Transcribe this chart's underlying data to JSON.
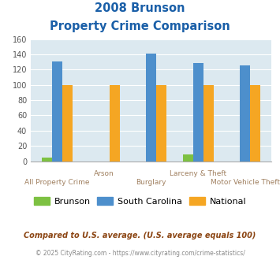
{
  "title_line1": "2008 Brunson",
  "title_line2": "Property Crime Comparison",
  "categories": [
    "All Property Crime",
    "Arson",
    "Burglary",
    "Larceny & Theft",
    "Motor Vehicle Theft"
  ],
  "brunson": [
    5,
    0,
    0,
    9,
    0
  ],
  "south_carolina": [
    131,
    0,
    141,
    129,
    125
  ],
  "national": [
    100,
    100,
    100,
    100,
    100
  ],
  "brunson_color": "#7dc142",
  "sc_color": "#4d8fcc",
  "national_color": "#f5a623",
  "bg_color": "#dce9f0",
  "ylim": [
    0,
    160
  ],
  "yticks": [
    0,
    20,
    40,
    60,
    80,
    100,
    120,
    140,
    160
  ],
  "title_color": "#1a5fa8",
  "label_row1": [
    "",
    "Arson",
    "",
    "Larceny & Theft",
    ""
  ],
  "label_row2": [
    "All Property Crime",
    "",
    "Burglary",
    "",
    "Motor Vehicle Theft"
  ],
  "label_color": "#a08060",
  "legend_labels": [
    "Brunson",
    "South Carolina",
    "National"
  ],
  "footnote1": "Compared to U.S. average. (U.S. average equals 100)",
  "footnote2": "© 2025 CityRating.com - https://www.cityrating.com/crime-statistics/",
  "footnote1_color": "#8b4513",
  "footnote2_color": "#888888",
  "bar_width": 0.22
}
